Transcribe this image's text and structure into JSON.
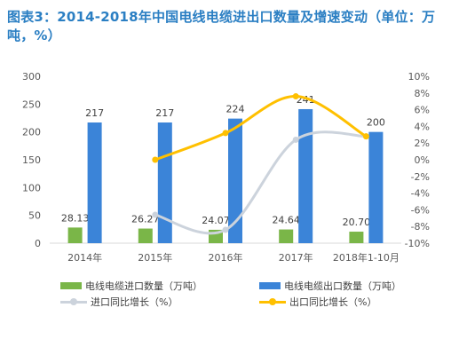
{
  "title": "图表3：2014-2018年中国电线电缆进出口数量及增速变动（单位：万吨，%）",
  "chart_data": {
    "type": "bar",
    "categories": [
      "2014年",
      "2015年",
      "2016年",
      "2017年",
      "2018年1-10月"
    ],
    "series": [
      {
        "name": "电线电缆进口数量（万吨）",
        "type": "bar",
        "axis": "left",
        "color": "#7ab648",
        "values": [
          28.13,
          26.27,
          24.07,
          24.64,
          20.7
        ],
        "labels": [
          "28.13",
          "26.27",
          "24.07",
          "24.64",
          "20.70"
        ]
      },
      {
        "name": "电线电缆出口数量（万吨）",
        "type": "bar",
        "axis": "left",
        "color": "#3b84d8",
        "values": [
          217,
          217,
          224,
          241,
          200
        ],
        "labels": [
          "217",
          "217",
          "224",
          "241",
          "200"
        ]
      },
      {
        "name": "进口同比增长（%）",
        "type": "line",
        "axis": "right",
        "color": "#ccd3dc",
        "values": [
          null,
          -6.6,
          -8.4,
          2.4,
          2.8
        ]
      },
      {
        "name": "出口同比增长（%）",
        "type": "line",
        "axis": "right",
        "color": "#ffc000",
        "values": [
          null,
          0.0,
          3.2,
          7.6,
          2.8
        ]
      }
    ],
    "left_axis": {
      "min": 0,
      "max": 300,
      "ticks": [
        "0",
        "50",
        "100",
        "150",
        "200",
        "250",
        "300"
      ]
    },
    "right_axis": {
      "min": -10,
      "max": 10,
      "ticks": [
        "-10%",
        "-8%",
        "-6%",
        "-4%",
        "-2%",
        "0%",
        "2%",
        "4%",
        "6%",
        "8%",
        "10%"
      ]
    },
    "grid": false,
    "legend": "bottom"
  }
}
